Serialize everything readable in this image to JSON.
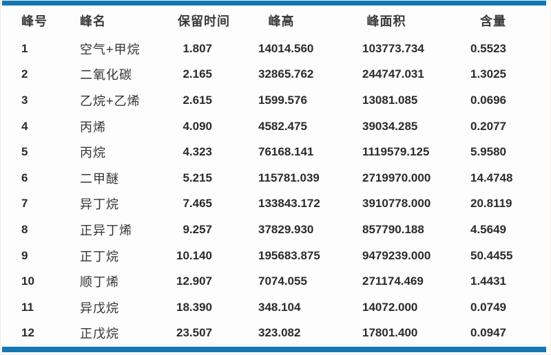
{
  "page": {
    "accent_color": "#1478b5",
    "background_color": "#fdfdfd",
    "text_color": "#2b2b2b"
  },
  "table": {
    "headers": {
      "peak_no": "峰号",
      "peak_name": "峰名",
      "retention_time": "保留时间",
      "peak_height": "峰高",
      "peak_area": "峰面积",
      "content": "含量"
    },
    "rows": [
      {
        "no": "1",
        "name": "空气+甲烷",
        "retention_time": "1.807",
        "height": "14014.560",
        "area": "103773.734",
        "content": "0.5523"
      },
      {
        "no": "2",
        "name": "二氧化碳",
        "retention_time": "2.165",
        "height": "32865.762",
        "area": "244747.031",
        "content": "1.3025"
      },
      {
        "no": "3",
        "name": "乙烷+乙烯",
        "retention_time": "2.615",
        "height": "1599.576",
        "area": "13081.085",
        "content": "0.0696"
      },
      {
        "no": "4",
        "name": "丙烯",
        "retention_time": "4.090",
        "height": "4582.475",
        "area": "39034.285",
        "content": "0.2077"
      },
      {
        "no": "5",
        "name": "丙烷",
        "retention_time": "4.323",
        "height": "76168.141",
        "area": "1119579.125",
        "content": "5.9580"
      },
      {
        "no": "6",
        "name": "二甲醚",
        "retention_time": "5.215",
        "height": "115781.039",
        "area": "2719970.000",
        "content": "14.4748"
      },
      {
        "no": "7",
        "name": "异丁烷",
        "retention_time": "7.465",
        "height": "133843.172",
        "area": "3910778.000",
        "content": "20.8119"
      },
      {
        "no": "8",
        "name": "正异丁烯",
        "retention_time": "9.257",
        "height": "37829.930",
        "area": "857790.188",
        "content": "4.5649"
      },
      {
        "no": "9",
        "name": "正丁烷",
        "retention_time": "10.140",
        "height": "195683.875",
        "area": "9479239.000",
        "content": "50.4455"
      },
      {
        "no": "10",
        "name": "顺丁烯",
        "retention_time": "12.907",
        "height": "7074.055",
        "area": "271174.469",
        "content": "1.4431"
      },
      {
        "no": "11",
        "name": "异戊烷",
        "retention_time": "18.390",
        "height": "348.104",
        "area": "14072.000",
        "content": "0.0749"
      },
      {
        "no": "12",
        "name": "正戊烷",
        "retention_time": "23.507",
        "height": "323.082",
        "area": "17801.400",
        "content": "0.0947"
      }
    ]
  }
}
